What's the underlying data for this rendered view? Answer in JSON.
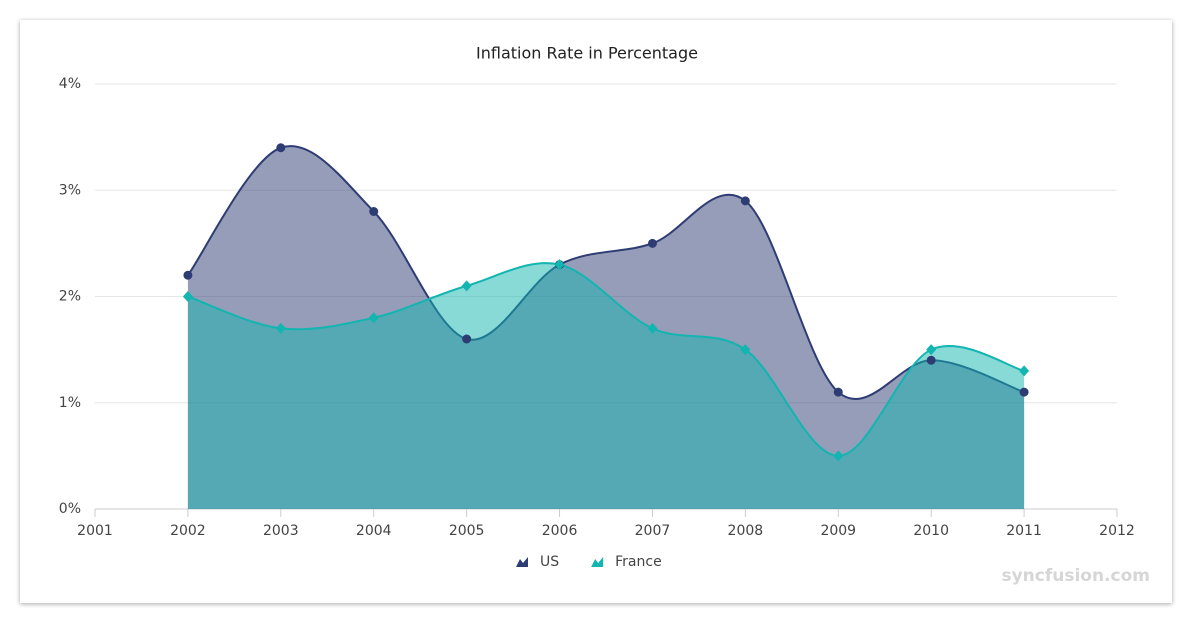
{
  "chart_data": {
    "type": "spline-area",
    "title": "Inflation Rate in Percentage",
    "x": [
      2002,
      2003,
      2004,
      2005,
      2006,
      2007,
      2008,
      2009,
      2010,
      2011
    ],
    "series": [
      {
        "name": "US",
        "color": "#2e3c74",
        "values": [
          2.2,
          3.4,
          2.8,
          1.6,
          2.3,
          2.5,
          2.9,
          1.1,
          1.4,
          1.1
        ]
      },
      {
        "name": "France",
        "color": "#12b5b0",
        "values": [
          2.0,
          1.7,
          1.8,
          2.1,
          2.3,
          1.7,
          1.5,
          0.5,
          1.5,
          1.3
        ]
      }
    ],
    "xlim": [
      2001,
      2012
    ],
    "xticks": [
      2001,
      2002,
      2003,
      2004,
      2005,
      2006,
      2007,
      2008,
      2009,
      2010,
      2011,
      2012
    ],
    "ylim": [
      0,
      4
    ],
    "yticks": [
      {
        "value": 0,
        "label": "0%"
      },
      {
        "value": 1,
        "label": "1%"
      },
      {
        "value": 2,
        "label": "2%"
      },
      {
        "value": 3,
        "label": "3%"
      },
      {
        "value": 4,
        "label": "4%"
      }
    ],
    "grid": true,
    "legend": "bottom",
    "watermark": "syncfusion.com"
  }
}
